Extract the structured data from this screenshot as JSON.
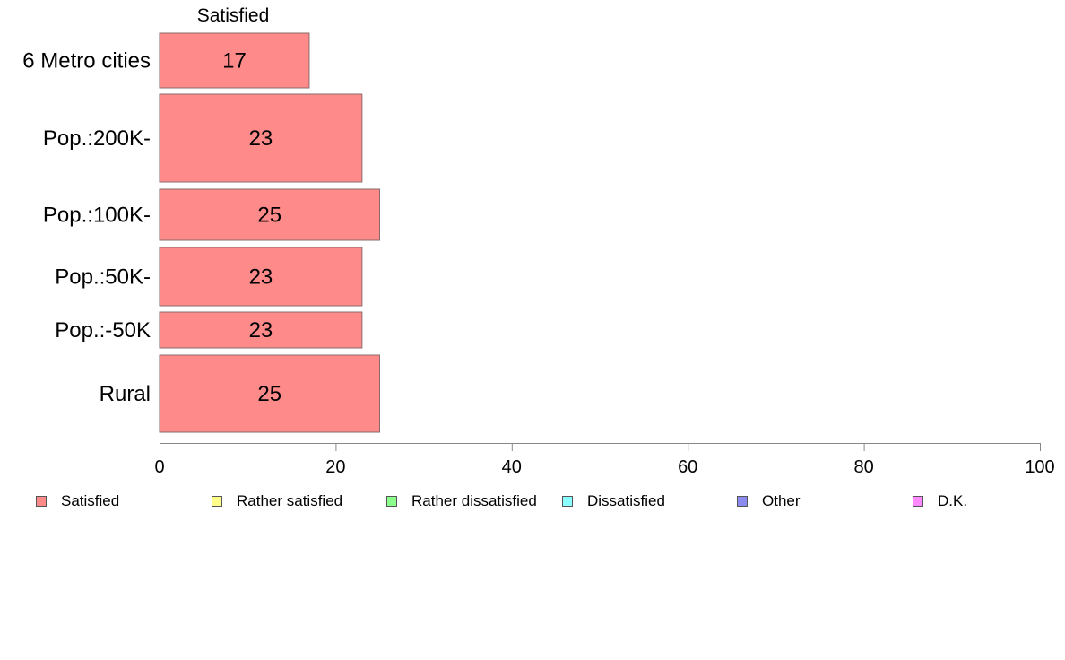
{
  "chart_data": {
    "type": "bar",
    "orientation": "horizontal",
    "series_header": "Satisfied",
    "categories": [
      "6 Metro cities",
      "Pop.:200K-",
      "Pop.:100K-",
      "Pop.:50K-",
      "Pop.:-50K",
      "Rural"
    ],
    "series": [
      {
        "name": "Satisfied",
        "values": [
          17,
          23,
          25,
          23,
          23,
          25
        ]
      }
    ],
    "value_labels": [
      "17",
      "23",
      "25",
      "23",
      "23",
      "25"
    ],
    "xlim": [
      0,
      100
    ],
    "x_ticks": [
      0,
      20,
      40,
      60,
      80,
      100
    ],
    "grid": false,
    "legend": {
      "placement": "bottom",
      "entries": [
        {
          "label": "Satisfied",
          "color": "#ff8a8a"
        },
        {
          "label": "Rather satisfied",
          "color": "#ffff8a"
        },
        {
          "label": "Rather dissatisfied",
          "color": "#8aff8a"
        },
        {
          "label": "Dissatisfied",
          "color": "#8affff"
        },
        {
          "label": "Other",
          "color": "#8a8af0"
        },
        {
          "label": "D.K.",
          "color": "#ff8aff"
        }
      ]
    },
    "colors": {
      "bar": "#ff8a8a",
      "bar_border": "#8a6b6b",
      "axis": "#888888"
    }
  }
}
